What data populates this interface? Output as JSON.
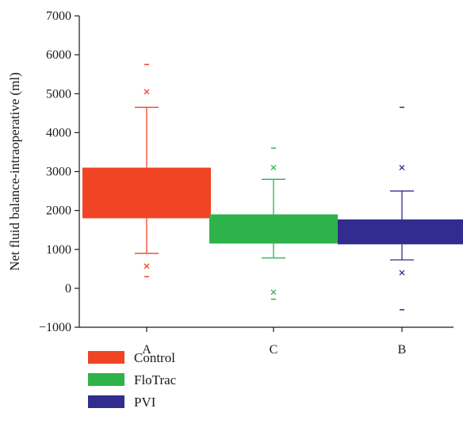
{
  "chart_data": {
    "type": "box",
    "title": "",
    "xlabel": "",
    "ylabel": "Net fluid balance-intraoperative (ml)",
    "ylim": [
      -1000,
      7000
    ],
    "yticks": [
      -1000,
      0,
      1000,
      2000,
      3000,
      4000,
      5000,
      6000,
      7000
    ],
    "ytick_labels": [
      "−1000",
      "0",
      "1000",
      "2000",
      "3000",
      "4000",
      "5000",
      "6000",
      "7000"
    ],
    "categories": [
      "A",
      "C",
      "B"
    ],
    "grid": false,
    "legend_position": "bottom-left",
    "series": [
      {
        "name": "Control",
        "category": "A",
        "color": "#f04424",
        "q1": 1800,
        "q3": 3100,
        "whisker_low": 900,
        "whisker_high": 4650,
        "outliers": [
          570,
          5050
        ],
        "extremes": [
          300,
          5750
        ]
      },
      {
        "name": "FloTrac",
        "category": "C",
        "color": "#2db34a",
        "q1": 1150,
        "q3": 1900,
        "whisker_low": 780,
        "whisker_high": 2800,
        "outliers": [
          -100,
          3100
        ],
        "extremes": [
          -280,
          3600
        ]
      },
      {
        "name": "PVI",
        "category": "B",
        "color": "#332c8f",
        "q1": 1130,
        "q3": 1770,
        "whisker_low": 730,
        "whisker_high": 2500,
        "outliers": [
          400,
          3100
        ],
        "extremes": [
          -550,
          4650
        ]
      }
    ]
  }
}
